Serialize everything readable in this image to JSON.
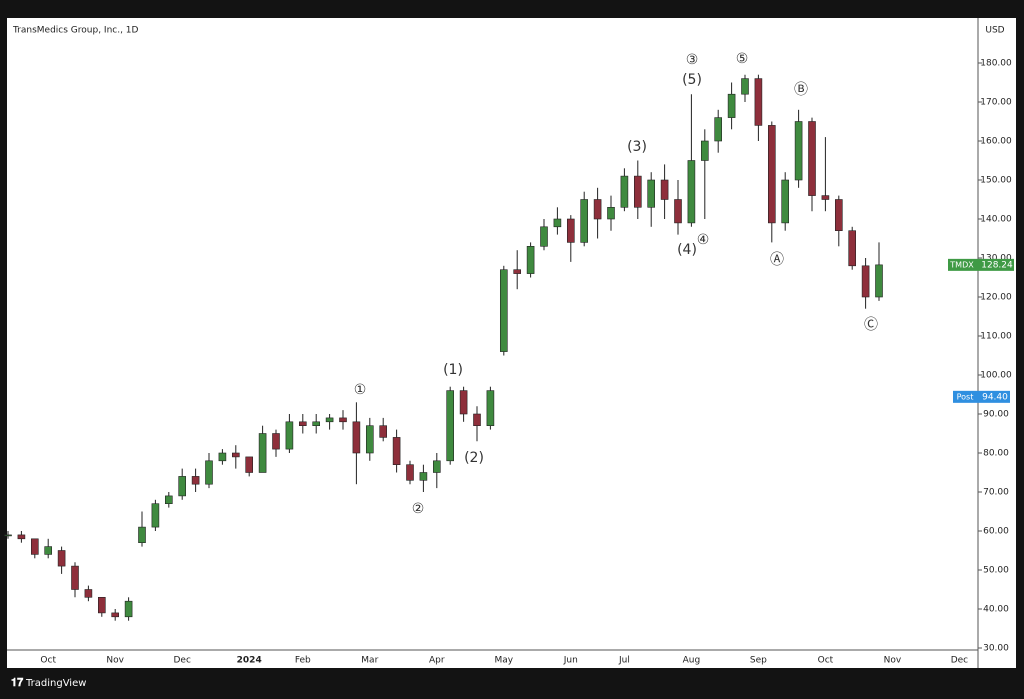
{
  "chart_data": {
    "type": "candlestick",
    "title": "TransMedics Group, Inc., 1D",
    "currency": "USD",
    "footer": "TradingView",
    "up_color": "#3f8a3f",
    "down_color": "#8e2f3b",
    "categories": [
      null,
      null,
      null,
      "Oct",
      null,
      null,
      null,
      null,
      "Nov",
      null,
      null,
      null,
      null,
      "Dec",
      null,
      null,
      null,
      null,
      "2024",
      null,
      null,
      null,
      "Feb",
      null,
      null,
      null,
      null,
      "Mar",
      null,
      null,
      null,
      null,
      "Apr",
      null,
      null,
      null,
      null,
      "May",
      null,
      null,
      null,
      null,
      "Jun",
      null,
      null,
      null,
      "Jul",
      null,
      null,
      null,
      null,
      "Aug",
      null,
      null,
      null,
      null,
      "Sep",
      null,
      null,
      null,
      null,
      "Oct",
      null,
      null,
      null,
      null,
      "Nov",
      null,
      null,
      null,
      null,
      "Dec",
      null
    ],
    "open": [
      59,
      59,
      58,
      54,
      55,
      51,
      45,
      43,
      39,
      38,
      57,
      61,
      67,
      69,
      74,
      72,
      78,
      80,
      79,
      75,
      85,
      81,
      88,
      87,
      88,
      89,
      88,
      80,
      87,
      84,
      77,
      73,
      75,
      78,
      96,
      90,
      87,
      106,
      127,
      126,
      133,
      138,
      140,
      134,
      145,
      140,
      143,
      151,
      143,
      150,
      145,
      139,
      155,
      160,
      166,
      172,
      176,
      164,
      139,
      150,
      165,
      146,
      145,
      137,
      128,
      120,
      null,
      null,
      null,
      null,
      null,
      null,
      null
    ],
    "high": [
      60,
      60,
      58,
      58,
      56,
      52,
      46,
      43,
      40,
      43,
      65,
      68,
      70,
      76,
      76,
      80,
      81,
      82,
      79,
      87,
      86,
      90,
      90,
      90,
      90,
      91,
      93,
      89,
      89,
      86,
      78,
      77,
      80,
      97,
      97,
      92,
      97,
      128,
      132,
      134,
      140,
      143,
      141,
      147,
      148,
      146,
      153,
      155,
      152,
      154,
      150,
      172,
      163,
      168,
      175,
      177,
      177,
      165,
      152,
      168,
      166,
      161,
      146,
      138,
      130,
      134,
      null,
      null,
      null,
      null,
      null,
      null,
      null
    ],
    "low": [
      58,
      57,
      53,
      53,
      49,
      43,
      42,
      38,
      37,
      37,
      56,
      60,
      66,
      68,
      70,
      71,
      77,
      76,
      74,
      75,
      79,
      80,
      85,
      85,
      86,
      86,
      72,
      78,
      83,
      75,
      72,
      70,
      71,
      77,
      88,
      83,
      86,
      105,
      122,
      125,
      132,
      136,
      129,
      133,
      135,
      137,
      142,
      140,
      138,
      140,
      136,
      138,
      140,
      157,
      163,
      170,
      160,
      134,
      137,
      148,
      142,
      142,
      133,
      127,
      117,
      119,
      null,
      null,
      null,
      null,
      null,
      null,
      null
    ],
    "close": [
      59,
      58,
      54,
      56,
      51,
      45,
      43,
      39,
      38,
      42,
      61,
      67,
      69,
      74,
      72,
      78,
      80,
      79,
      75,
      85,
      81,
      88,
      87,
      88,
      89,
      88,
      80,
      87,
      84,
      77,
      73,
      75,
      78,
      96,
      90,
      87,
      96,
      127,
      126,
      133,
      138,
      140,
      134,
      145,
      140,
      143,
      151,
      143,
      150,
      145,
      139,
      155,
      160,
      166,
      172,
      176,
      164,
      139,
      150,
      165,
      146,
      145,
      137,
      128,
      120,
      128.24,
      null,
      null,
      null,
      null,
      null,
      null,
      null
    ],
    "ylim": [
      29,
      186
    ],
    "yticks": [
      {
        "value": 30,
        "label": "30.00"
      },
      {
        "value": 40,
        "label": "40.00"
      },
      {
        "value": 50,
        "label": "50.00"
      },
      {
        "value": 60,
        "label": "60.00"
      },
      {
        "value": 70,
        "label": "70.00"
      },
      {
        "value": 80,
        "label": "80.00"
      },
      {
        "value": 90,
        "label": "90.00"
      },
      {
        "value": 100,
        "label": "100.00"
      },
      {
        "value": 110,
        "label": "110.00"
      },
      {
        "value": 120,
        "label": "120.00"
      },
      {
        "value": 130,
        "label": "130.00"
      },
      {
        "value": 140,
        "label": "140.00"
      },
      {
        "value": 150,
        "label": "150.00"
      },
      {
        "value": 160,
        "label": "160.00"
      },
      {
        "value": 170,
        "label": "170.00"
      },
      {
        "value": 180,
        "label": "180.00"
      }
    ],
    "last_price": {
      "label": "TMDX",
      "value": 128.24
    },
    "post_price": {
      "label": "Post",
      "value": 94.4,
      "value_label": "94.40"
    },
    "annotations": [
      "①",
      "(1)",
      "(2)",
      "②",
      "(3)",
      "③",
      "(5)",
      "(4)",
      "④",
      "⑤",
      "Ⓐ",
      "Ⓑ",
      "Ⓒ"
    ]
  }
}
